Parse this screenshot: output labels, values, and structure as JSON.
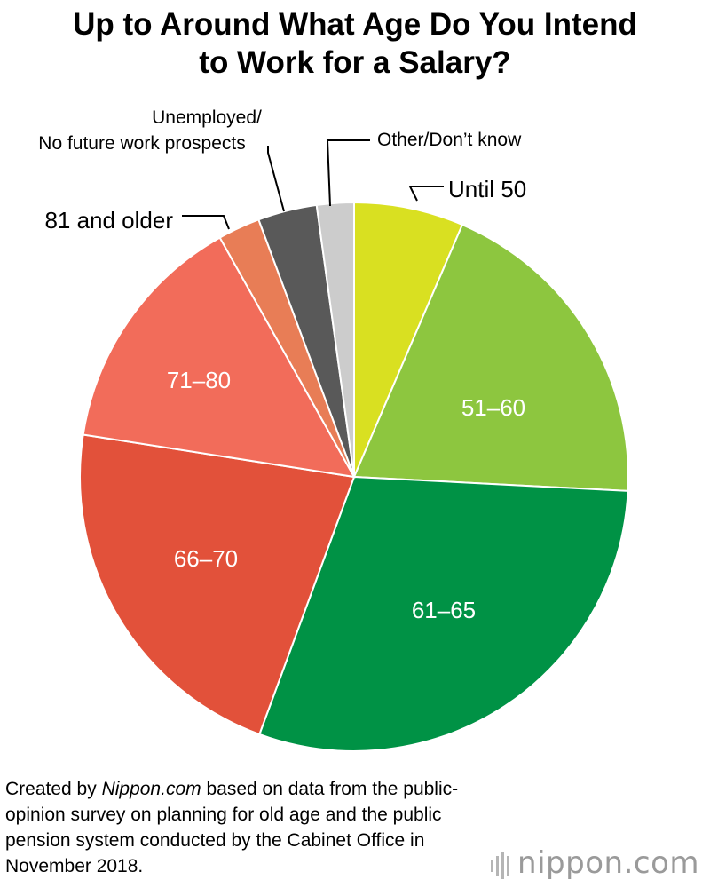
{
  "chart_data": {
    "type": "pie",
    "title": [
      "Up to Around What Age Do You Intend",
      "to Work for a Salary?"
    ],
    "slices": [
      {
        "label": "Until 50",
        "value": 6.5,
        "color": "#d9e021",
        "label_mode": "outside"
      },
      {
        "label": "51–60",
        "value": 19.5,
        "color": "#8dc63f",
        "label_mode": "inside"
      },
      {
        "label": "61–65",
        "value": 30.0,
        "color": "#009245",
        "label_mode": "inside"
      },
      {
        "label": "66–70",
        "value": 22.0,
        "color": "#e2513a",
        "label_mode": "inside"
      },
      {
        "label": "71–80",
        "value": 14.5,
        "color": "#f26c5a",
        "label_mode": "inside"
      },
      {
        "label": "81 and older",
        "value": 2.5,
        "color": "#e87d56",
        "label_mode": "outside"
      },
      {
        "label": [
          "Unemployed/",
          "No future work prospects"
        ],
        "value": 3.5,
        "color": "#595959",
        "label_mode": "outside"
      },
      {
        "label": "Other/Don’t know",
        "value": 2.2,
        "color": "#cccccc",
        "label_mode": "outside"
      }
    ]
  },
  "source": {
    "prefix": "Created by ",
    "site": "Nippon.com",
    "text": " based on data from the public-opinion survey on planning for old age and the public pension system conducted by the Cabinet Office in November 2018."
  },
  "logo": {
    "text": "nippon",
    "suffix": ".com",
    "name": "nippon-logo-icon"
  }
}
